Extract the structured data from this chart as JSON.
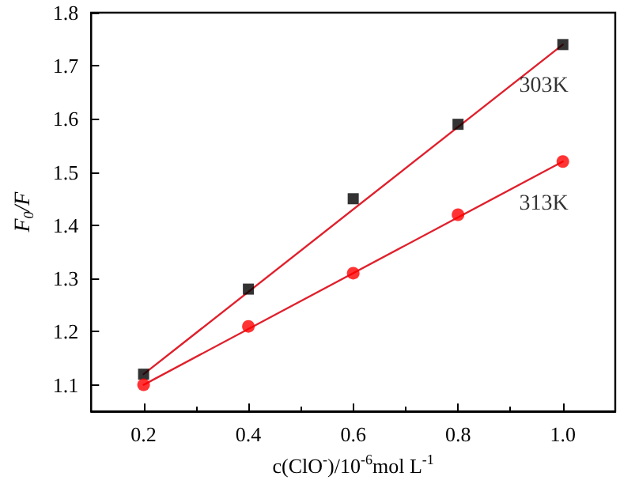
{
  "chart_data": {
    "type": "scatter",
    "xlabel": "c(ClO$^{-}$)/10$^{-6}$mol L$^{-1}$",
    "ylabel": "F$_{0}$/F",
    "xlim": [
      0.1,
      1.1
    ],
    "xticks": [
      0.2,
      0.4,
      0.6,
      0.8,
      {
        "value": 1.0,
        "label": "1.0"
      }
    ],
    "ylim": [
      1.05,
      1.8
    ],
    "yticks": [
      1.1,
      1.2,
      1.3,
      1.4,
      1.5,
      1.6,
      1.7,
      1.8
    ],
    "grid": false,
    "legend": false,
    "series": [
      {
        "name": "303K",
        "marker": "square",
        "color": "#000000",
        "x": [
          0.2,
          0.4,
          0.6,
          0.8,
          1.0
        ],
        "values": [
          1.12,
          1.28,
          1.45,
          1.59,
          1.74
        ]
      },
      {
        "name": "313K",
        "marker": "circle",
        "color": "#ff0000",
        "x": [
          0.2,
          0.4,
          0.6,
          0.8,
          1.0
        ],
        "values": [
          1.1,
          1.21,
          1.31,
          1.42,
          1.52
        ]
      },
      {
        "type": "line",
        "marker": "none",
        "color": "#e0202c",
        "x": [
          0.2,
          1.0
        ],
        "values": [
          1.12,
          1.74
        ]
      },
      {
        "type": "line",
        "marker": "none",
        "color": "#e0202c",
        "x": [
          0.2,
          1.0
        ],
        "values": [
          1.1,
          1.52
        ]
      }
    ]
  }
}
